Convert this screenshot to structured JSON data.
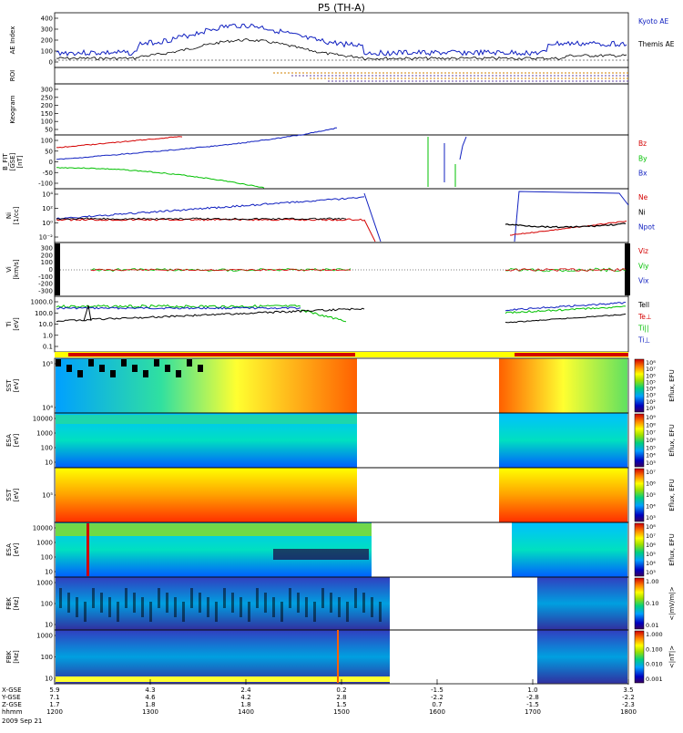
{
  "title": "P5 (TH-A)",
  "colors": {
    "red": "#d40000",
    "green": "#00c000",
    "blue": "#1020c0",
    "black": "#000000",
    "orange": "#ff8c00",
    "yellow": "#ffff00"
  },
  "chart_data": {
    "type": "line",
    "x_ticks": [
      "1200",
      "1300",
      "1400",
      "1500",
      "1600",
      "1700",
      "1800"
    ],
    "x_axis_rows": [
      {
        "label": "X-GSE",
        "values": [
          "5.9",
          "4.3",
          "2.4",
          "0.2",
          "-1.5",
          "1.0",
          "3.5"
        ]
      },
      {
        "label": "Y-GSE",
        "values": [
          "7.1",
          "4.6",
          "4.2",
          "2.8",
          "-2.2",
          "-2.8",
          "-2.2"
        ]
      },
      {
        "label": "Z-GSE",
        "values": [
          "1.7",
          "1.8",
          "1.8",
          "1.5",
          "0.7",
          "-1.5",
          "-2.3"
        ]
      },
      {
        "label": "hhmm",
        "values": [
          "1200",
          "1300",
          "1400",
          "1500",
          "1600",
          "1700",
          "1800"
        ]
      }
    ],
    "date_label": "2009 Sep 21",
    "panels": [
      {
        "id": "ae",
        "ylabel": "AE Index",
        "ticks": [
          "400",
          "300",
          "200",
          "100",
          "0"
        ],
        "legend": [
          {
            "text": "Kyoto AE",
            "color": "blue"
          },
          {
            "text": "Themis AE",
            "color": "black"
          }
        ]
      },
      {
        "id": "roi",
        "ylabel": "ROI",
        "ticks": []
      },
      {
        "id": "keogram",
        "ylabel": "Keogram",
        "ticks": [
          "300",
          "250",
          "200",
          "150",
          "100",
          "50"
        ]
      },
      {
        "id": "bfit",
        "ylabel": "B_FIT\n[GSE]\n[nT]",
        "ticks": [
          "100",
          "50",
          "0",
          "-50",
          "-100"
        ],
        "legend": [
          {
            "text": "Bz",
            "color": "red"
          },
          {
            "text": "By",
            "color": "green"
          },
          {
            "text": "Bx",
            "color": "blue"
          }
        ]
      },
      {
        "id": "ni",
        "ylabel": "Ni\n[1/cc]",
        "ticks": [
          "10^4",
          "10^2",
          "10^0",
          "10^-2"
        ],
        "legend": [
          {
            "text": "Ne",
            "color": "red"
          },
          {
            "text": "Ni",
            "color": "black"
          },
          {
            "text": "Npot",
            "color": "blue"
          }
        ]
      },
      {
        "id": "vi",
        "ylabel": "Vi\n[km/s]",
        "ticks": [
          "300",
          "200",
          "100",
          "0",
          "-100",
          "-200",
          "-300"
        ],
        "legend": [
          {
            "text": "Viz",
            "color": "red"
          },
          {
            "text": "Viy",
            "color": "green"
          },
          {
            "text": "Vix",
            "color": "blue"
          }
        ]
      },
      {
        "id": "ti",
        "ylabel": "Ti\n[eV]",
        "ticks": [
          "1000.0",
          "100.0",
          "10.0",
          "1.0",
          "0.1"
        ],
        "legend": [
          {
            "text": "Tell",
            "color": "black"
          },
          {
            "text": "Te⊥",
            "color": "red"
          },
          {
            "text": "Ti||",
            "color": "green"
          },
          {
            "text": "Ti⊥",
            "color": "blue"
          }
        ]
      },
      {
        "id": "sst_e",
        "ylabel": "SST\n[eV]",
        "ticks": [
          "10^5",
          "10^4"
        ],
        "colorbar": {
          "label": "Eflux, EFU",
          "ticks": [
            "10^8",
            "10^7",
            "10^6",
            "10^5",
            "10^4",
            "10^3",
            "10^2",
            "10^1"
          ]
        }
      },
      {
        "id": "esa_e",
        "ylabel": "ESA\n[eV]",
        "ticks": [
          "10000",
          "1000",
          "100",
          "10"
        ],
        "colorbar": {
          "label": "Eflux, EFU",
          "ticks": [
            "10^9",
            "10^8",
            "10^7",
            "10^6",
            "10^5",
            "10^4",
            "10^3"
          ]
        }
      },
      {
        "id": "sst_i",
        "ylabel": "SST\n[eV]",
        "ticks": [
          "10^5"
        ],
        "colorbar": {
          "label": "Eflux, EFU",
          "ticks": [
            "10^7",
            "10^6",
            "10^5",
            "10^4",
            "10^3"
          ]
        }
      },
      {
        "id": "esa_i",
        "ylabel": "ESA\n[eV]",
        "ticks": [
          "10000",
          "1000",
          "100",
          "10"
        ],
        "colorbar": {
          "label": "Eflux, EFU",
          "ticks": [
            "10^8",
            "10^7",
            "10^6",
            "10^5",
            "10^4",
            "10^3"
          ]
        }
      },
      {
        "id": "fbk1",
        "ylabel": "FBK\n[Hz]",
        "ticks": [
          "1000",
          "100",
          "10"
        ],
        "colorbar": {
          "label": "<|mV/m|>",
          "ticks": [
            "1.00",
            "0.10",
            "0.01"
          ]
        }
      },
      {
        "id": "fbk2",
        "ylabel": "FBK\n[Hz]",
        "ticks": [
          "1000",
          "100",
          "10"
        ],
        "colorbar": {
          "label": "<|nT|>",
          "ticks": [
            "1.000",
            "0.100",
            "0.010",
            "0.001"
          ]
        }
      }
    ]
  }
}
